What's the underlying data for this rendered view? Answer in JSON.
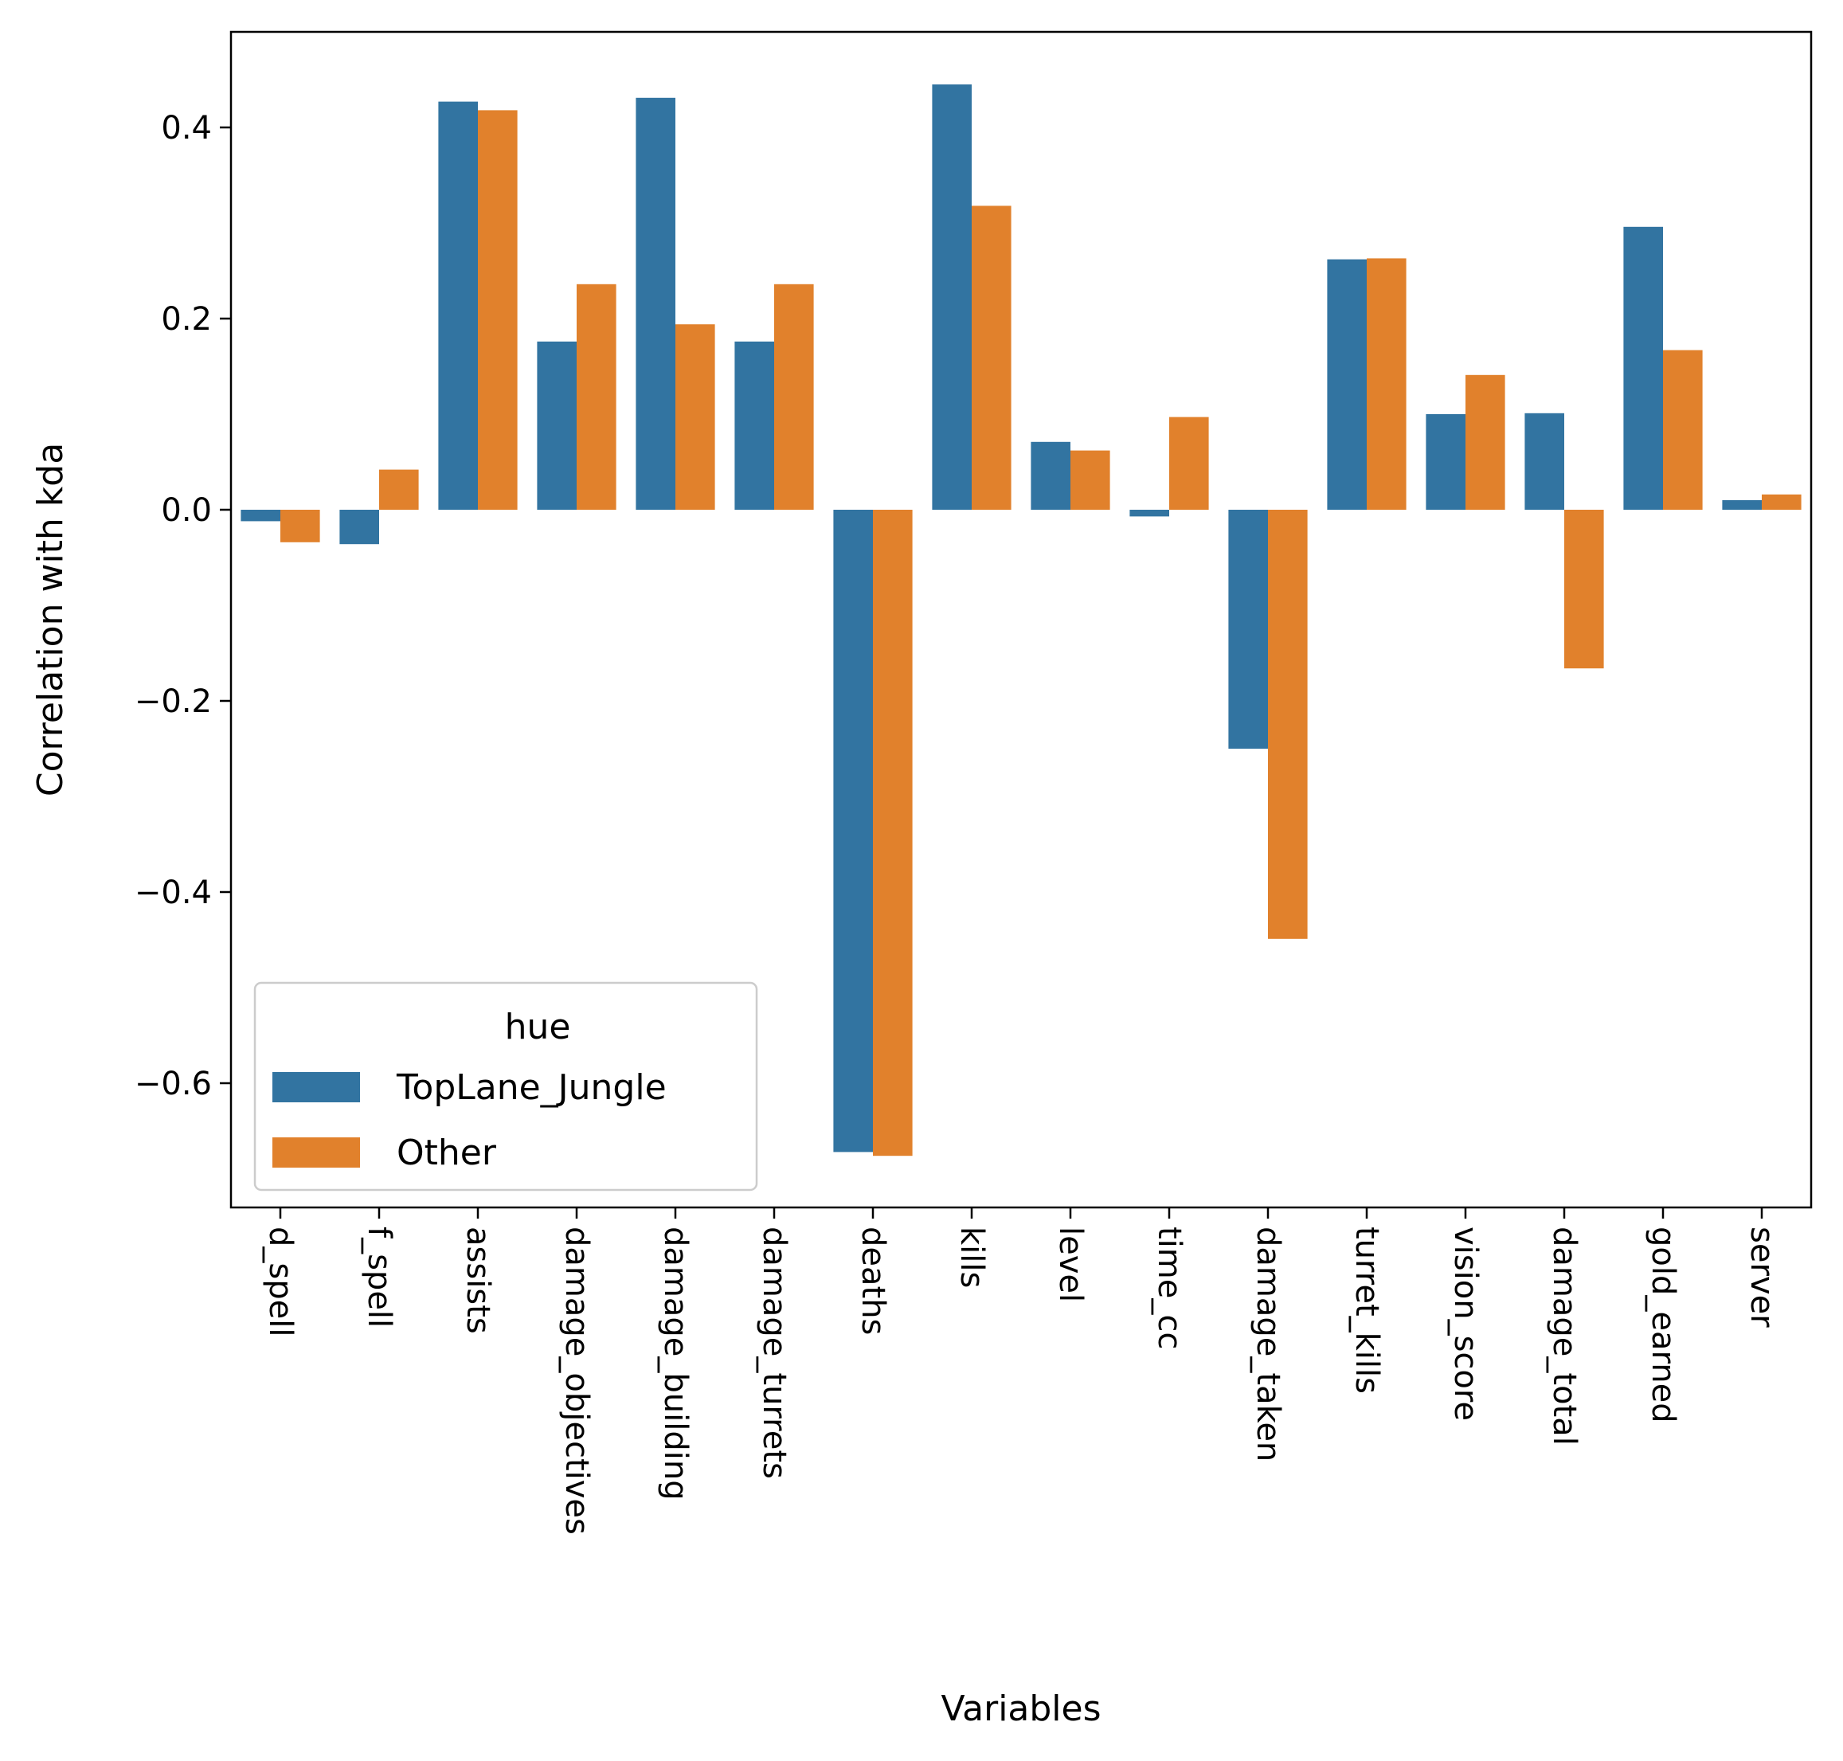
{
  "chart_data": {
    "type": "bar",
    "xlabel": "Variables",
    "ylabel": "Correlation with kda",
    "ylim": [
      -0.73,
      0.5
    ],
    "yticks": [
      -0.6,
      -0.4,
      -0.2,
      0.0,
      0.2,
      0.4
    ],
    "ytick_labels": [
      "−0.6",
      "−0.4",
      "−0.2",
      "0.0",
      "0.2",
      "0.4"
    ],
    "grid": false,
    "categories": [
      "d_spell",
      "f_spell",
      "assists",
      "damage_objectives",
      "damage_building",
      "damage_turrets",
      "deaths",
      "kills",
      "level",
      "time_cc",
      "damage_taken",
      "turret_kills",
      "vision_score",
      "damage_total",
      "gold_earned",
      "server"
    ],
    "series": [
      {
        "name": "TopLane_Jungle",
        "color": "#3274a1",
        "values": [
          -0.012,
          -0.036,
          0.427,
          0.176,
          0.431,
          0.176,
          -0.672,
          0.445,
          0.071,
          -0.007,
          -0.25,
          0.262,
          0.1,
          0.101,
          0.296,
          0.01
        ]
      },
      {
        "name": "Other",
        "color": "#e1812c",
        "values": [
          -0.034,
          0.042,
          0.418,
          0.236,
          0.194,
          0.236,
          -0.676,
          0.318,
          0.062,
          0.097,
          -0.449,
          0.263,
          0.141,
          -0.166,
          0.167,
          0.016
        ]
      }
    ],
    "legend": {
      "title": "hue",
      "placement": "lower-left"
    }
  }
}
